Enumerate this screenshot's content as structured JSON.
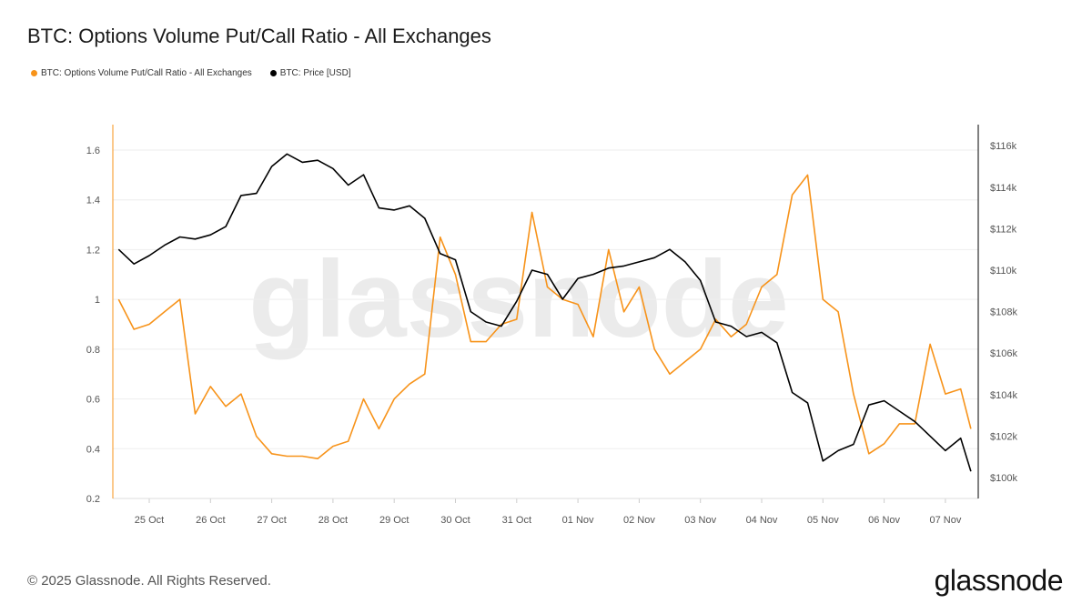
{
  "chart_data": {
    "type": "line",
    "title": "BTC: Options Volume Put/Call Ratio - All Exchanges",
    "watermark": "glassnode",
    "legend_position": "top-left",
    "grid": true,
    "x_ticks": [
      "25 Oct",
      "26 Oct",
      "27 Oct",
      "28 Oct",
      "29 Oct",
      "30 Oct",
      "31 Oct",
      "01 Nov",
      "02 Nov",
      "03 Nov",
      "04 Nov",
      "05 Nov",
      "06 Nov",
      "07 Nov"
    ],
    "y_left": {
      "ticks": [
        "0.2",
        "0.4",
        "0.6",
        "0.8",
        "1",
        "1.2",
        "1.4",
        "1.6"
      ],
      "range": [
        0.2,
        1.7
      ]
    },
    "y_right": {
      "ticks": [
        "$100k",
        "$102k",
        "$104k",
        "$106k",
        "$108k",
        "$110k",
        "$112k",
        "$114k",
        "$116k"
      ],
      "range": [
        99,
        117
      ]
    },
    "x": [
      "2025-10-24T12",
      "2025-10-24T18",
      "2025-10-25T00",
      "2025-10-25T06",
      "2025-10-25T12",
      "2025-10-25T18",
      "2025-10-26T00",
      "2025-10-26T06",
      "2025-10-26T12",
      "2025-10-26T18",
      "2025-10-27T00",
      "2025-10-27T06",
      "2025-10-27T12",
      "2025-10-27T18",
      "2025-10-28T00",
      "2025-10-28T06",
      "2025-10-28T12",
      "2025-10-28T18",
      "2025-10-29T00",
      "2025-10-29T06",
      "2025-10-29T12",
      "2025-10-29T18",
      "2025-10-30T00",
      "2025-10-30T06",
      "2025-10-30T12",
      "2025-10-30T18",
      "2025-10-31T00",
      "2025-10-31T06",
      "2025-10-31T12",
      "2025-10-31T18",
      "2025-11-01T00",
      "2025-11-01T06",
      "2025-11-01T12",
      "2025-11-01T18",
      "2025-11-02T00",
      "2025-11-02T06",
      "2025-11-02T12",
      "2025-11-02T18",
      "2025-11-03T00",
      "2025-11-03T06",
      "2025-11-03T12",
      "2025-11-03T18",
      "2025-11-04T00",
      "2025-11-04T06",
      "2025-11-04T12",
      "2025-11-04T18",
      "2025-11-05T00",
      "2025-11-05T06",
      "2025-11-05T12",
      "2025-11-05T18",
      "2025-11-06T00",
      "2025-11-06T06",
      "2025-11-06T12",
      "2025-11-06T18",
      "2025-11-07T00",
      "2025-11-07T06",
      "2025-11-07T10"
    ],
    "series": [
      {
        "name": "BTC: Options Volume Put/Call Ratio - All Exchanges",
        "axis": "left",
        "color": "#f7931a",
        "values": [
          1.0,
          0.88,
          0.9,
          0.95,
          1.0,
          0.54,
          0.65,
          0.57,
          0.62,
          0.45,
          0.38,
          0.37,
          0.37,
          0.36,
          0.41,
          0.43,
          0.6,
          0.48,
          0.6,
          0.66,
          0.7,
          1.25,
          1.1,
          0.83,
          0.83,
          0.9,
          0.92,
          1.35,
          1.05,
          1.0,
          0.98,
          0.85,
          1.2,
          0.95,
          1.05,
          0.8,
          0.7,
          0.75,
          0.8,
          0.92,
          0.85,
          0.9,
          1.05,
          1.1,
          1.42,
          1.5,
          1.0,
          0.95,
          0.62,
          0.38,
          0.42,
          0.5,
          0.5,
          0.82,
          0.62,
          0.64,
          0.48
        ]
      },
      {
        "name": "BTC: Price [USD]",
        "axis": "right",
        "color": "#000000",
        "values": [
          111.0,
          110.3,
          110.7,
          111.2,
          111.6,
          111.5,
          111.7,
          112.1,
          113.6,
          113.7,
          115.0,
          115.6,
          115.2,
          115.3,
          114.9,
          114.1,
          114.6,
          113.0,
          112.9,
          113.1,
          112.5,
          110.8,
          110.5,
          108.0,
          107.5,
          107.3,
          108.5,
          110.0,
          109.8,
          108.6,
          109.6,
          109.8,
          110.1,
          110.2,
          110.4,
          110.6,
          111.0,
          110.4,
          109.5,
          107.5,
          107.3,
          106.8,
          107.0,
          106.5,
          104.1,
          103.6,
          100.8,
          101.3,
          101.6,
          103.5,
          103.7,
          103.2,
          102.7,
          102.0,
          101.3,
          101.9,
          100.3
        ]
      }
    ]
  },
  "footer": {
    "copyright": "© 2025 Glassnode. All Rights Reserved.",
    "logo": "glassnode"
  }
}
